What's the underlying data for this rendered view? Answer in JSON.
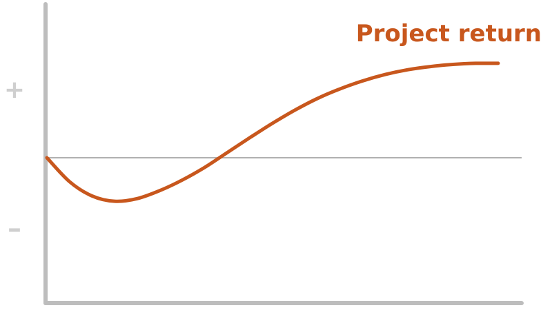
{
  "chart_data": {
    "type": "line",
    "title": "",
    "xlabel": "",
    "ylabel": "",
    "y_tick_labels": {
      "positive": "+",
      "negative": "–"
    },
    "ylim": [
      -1.6,
      2.2
    ],
    "xlim": [
      0,
      1
    ],
    "reference_line_y": 0,
    "series": [
      {
        "name": "Project return",
        "color": "#c8571d",
        "x": [
          0,
          0.05,
          0.1,
          0.15,
          0.2,
          0.25,
          0.3,
          0.35,
          0.4,
          0.45,
          0.5,
          0.55,
          0.6,
          0.65,
          0.7,
          0.75,
          0.8,
          0.85,
          0.9,
          0.95,
          1.0
        ],
        "y": [
          0,
          -0.45,
          -0.72,
          -0.82,
          -0.77,
          -0.62,
          -0.42,
          -0.18,
          0.1,
          0.38,
          0.65,
          0.9,
          1.12,
          1.3,
          1.45,
          1.57,
          1.66,
          1.72,
          1.76,
          1.78,
          1.78
        ]
      }
    ],
    "axis_color": "#bdbdbd",
    "reference_line_color": "#b0b0b0",
    "grid": false
  }
}
